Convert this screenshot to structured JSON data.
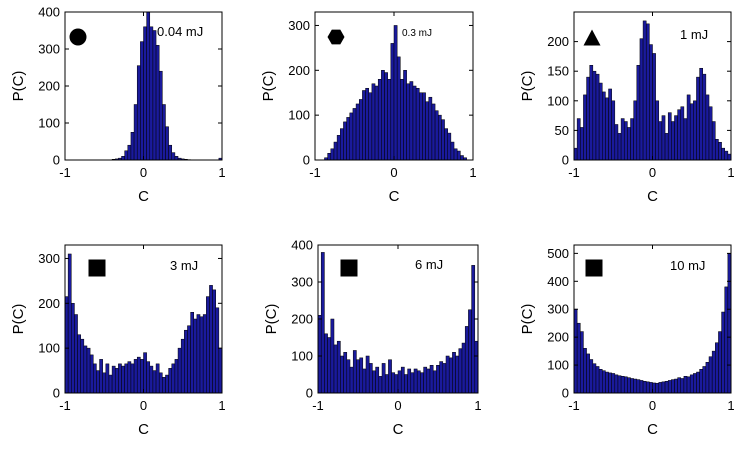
{
  "colors": {
    "bar_fill": "#1a1a9c",
    "bar_edge": "#000000",
    "axis": "#000000"
  },
  "chart_data": [
    {
      "type": "bar",
      "label": "0.04 mJ",
      "marker": "circle-icon",
      "xlabel": "C",
      "ylabel": "P(C)",
      "xlim": [
        -1,
        1
      ],
      "ylim": [
        0,
        400
      ],
      "xticks": [
        "-1",
        "0",
        "1"
      ],
      "yticks": [
        "0",
        "100",
        "200",
        "300",
        "400"
      ],
      "bin_count": 50,
      "values": [
        0,
        0,
        0,
        0,
        0,
        0,
        0,
        0,
        0,
        0,
        0,
        0,
        0,
        0,
        0,
        2,
        3,
        5,
        10,
        25,
        40,
        75,
        150,
        255,
        320,
        360,
        400,
        360,
        350,
        310,
        240,
        150,
        90,
        40,
        20,
        10,
        5,
        3,
        2,
        1,
        0,
        0,
        0,
        0,
        0,
        0,
        0,
        0,
        0,
        5
      ]
    },
    {
      "type": "bar",
      "label": "0.3 mJ",
      "marker": "hexagon-icon",
      "xlabel": "C",
      "ylabel": "P(C)",
      "xlim": [
        -1,
        1
      ],
      "ylim": [
        0,
        330
      ],
      "xticks": [
        "-1",
        "0",
        "1"
      ],
      "yticks": [
        "0",
        "100",
        "200",
        "300"
      ],
      "bin_count": 50,
      "values": [
        0,
        0,
        0,
        5,
        15,
        25,
        40,
        55,
        70,
        85,
        95,
        105,
        115,
        125,
        135,
        155,
        160,
        150,
        170,
        165,
        180,
        200,
        195,
        180,
        260,
        300,
        230,
        180,
        200,
        170,
        175,
        165,
        160,
        150,
        150,
        130,
        140,
        125,
        110,
        100,
        90,
        70,
        60,
        40,
        25,
        20,
        10,
        5,
        0,
        0
      ]
    },
    {
      "type": "bar",
      "label": "1 mJ",
      "marker": "triangle-icon",
      "xlabel": "C",
      "ylabel": "P(C)",
      "xlim": [
        -1,
        1
      ],
      "ylim": [
        0,
        250
      ],
      "xticks": [
        "-1",
        "0",
        "1"
      ],
      "yticks": [
        "0",
        "50",
        "100",
        "150",
        "200"
      ],
      "bin_count": 50,
      "values": [
        20,
        70,
        55,
        110,
        140,
        160,
        150,
        145,
        130,
        115,
        105,
        120,
        100,
        60,
        45,
        70,
        65,
        55,
        70,
        100,
        160,
        205,
        235,
        230,
        195,
        180,
        100,
        65,
        75,
        45,
        80,
        65,
        75,
        85,
        90,
        70,
        110,
        95,
        100,
        140,
        155,
        145,
        110,
        90,
        65,
        35,
        30,
        20,
        15,
        10
      ]
    },
    {
      "type": "bar",
      "label": "3 mJ",
      "marker": "square-icon",
      "xlabel": "C",
      "ylabel": "P(C)",
      "xlim": [
        -1,
        1
      ],
      "ylim": [
        0,
        330
      ],
      "xticks": [
        "-1",
        "0",
        "1"
      ],
      "yticks": [
        "0",
        "100",
        "200",
        "300"
      ],
      "bin_count": 50,
      "values": [
        215,
        310,
        200,
        175,
        130,
        120,
        105,
        100,
        85,
        65,
        50,
        75,
        45,
        65,
        40,
        60,
        55,
        65,
        60,
        65,
        70,
        65,
        75,
        80,
        75,
        90,
        70,
        60,
        50,
        65,
        45,
        35,
        40,
        55,
        65,
        75,
        100,
        120,
        140,
        150,
        180,
        165,
        175,
        170,
        175,
        215,
        240,
        230,
        190,
        100
      ]
    },
    {
      "type": "bar",
      "label": "6 mJ",
      "marker": "square-icon",
      "xlabel": "C",
      "ylabel": "P(C)",
      "xlim": [
        -1,
        1
      ],
      "ylim": [
        0,
        400
      ],
      "xticks": [
        "-1",
        "0",
        "1"
      ],
      "yticks": [
        "0",
        "100",
        "200",
        "300",
        "400"
      ],
      "bin_count": 50,
      "values": [
        210,
        380,
        160,
        150,
        200,
        130,
        140,
        100,
        110,
        90,
        70,
        115,
        90,
        95,
        65,
        100,
        80,
        60,
        70,
        45,
        80,
        50,
        90,
        55,
        50,
        60,
        70,
        50,
        65,
        55,
        65,
        60,
        55,
        70,
        65,
        75,
        60,
        75,
        85,
        80,
        100,
        95,
        110,
        100,
        120,
        135,
        180,
        225,
        345,
        140
      ]
    },
    {
      "type": "bar",
      "label": "10 mJ",
      "marker": "square-icon",
      "xlabel": "C",
      "ylabel": "P(C)",
      "xlim": [
        -1,
        1
      ],
      "ylim": [
        0,
        530
      ],
      "xticks": [
        "-1",
        "0",
        "1"
      ],
      "yticks": [
        "0",
        "100",
        "200",
        "300",
        "400",
        "500"
      ],
      "bin_count": 50,
      "values": [
        300,
        250,
        220,
        160,
        140,
        120,
        105,
        95,
        85,
        80,
        75,
        72,
        70,
        65,
        62,
        60,
        58,
        55,
        52,
        50,
        48,
        45,
        42,
        40,
        38,
        36,
        35,
        38,
        40,
        42,
        45,
        48,
        50,
        55,
        52,
        60,
        58,
        65,
        70,
        75,
        85,
        95,
        110,
        130,
        150,
        180,
        220,
        290,
        380,
        500
      ]
    }
  ]
}
